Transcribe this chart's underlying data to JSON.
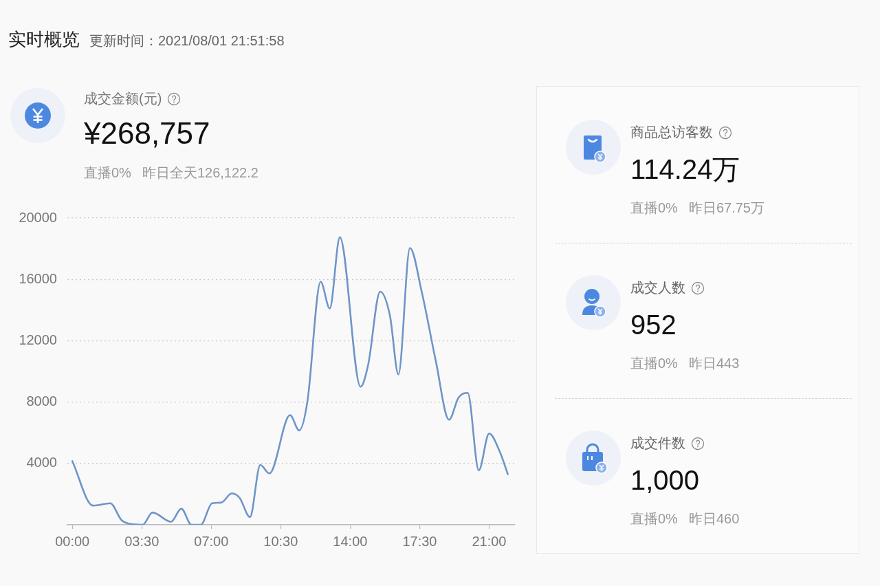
{
  "chart_data": [
    {
      "type": "line",
      "title": "实时概览",
      "subtitle": "更新时间：2021/08/01 21:51:58",
      "annotations": [
        "成交金额(元)",
        "¥268,757",
        "直播0%",
        "昨日全天126,122.2"
      ],
      "x": [
        0,
        1.04,
        1.91,
        2.48,
        2.94,
        3.54,
        4.04,
        4.97,
        5.49,
        6.0,
        6.47,
        7.04,
        7.51,
        8.03,
        8.43,
        8.95,
        9.47,
        9.93,
        10.97,
        11.43,
        11.84,
        12.51,
        12.97,
        13.48,
        14.52,
        14.9,
        15.51,
        16.0,
        16.43,
        17.01,
        17.61,
        18.31,
        18.98,
        19.46,
        19.92,
        20.48,
        21.0,
        21.54,
        21.94
      ],
      "series": [
        {
          "color": "#6f95c8",
          "values": [
            4150,
            1250,
            1400,
            300,
            50,
            0,
            800,
            200,
            1050,
            0,
            0,
            1400,
            1450,
            2050,
            1750,
            500,
            3900,
            3350,
            7150,
            6150,
            8000,
            15850,
            14100,
            18750,
            9000,
            10400,
            15200,
            13650,
            9800,
            18050,
            15150,
            10700,
            6850,
            8300,
            8600,
            3550,
            5950,
            4750,
            3300
          ]
        }
      ],
      "xlim": [
        -0.25,
        22.3
      ],
      "xticks": [
        {
          "value": 0,
          "label": "00:00"
        },
        {
          "value": 3.5,
          "label": "03:30"
        },
        {
          "value": 7,
          "label": "07:00"
        },
        {
          "value": 10.5,
          "label": "10:30"
        },
        {
          "value": 14,
          "label": "14:00"
        },
        {
          "value": 17.5,
          "label": "17:30"
        },
        {
          "value": 21,
          "label": "21:00"
        }
      ],
      "ylim": [
        0,
        20000
      ],
      "yticks": [
        4000,
        8000,
        12000,
        16000,
        20000
      ],
      "grid": "y",
      "marker": "none",
      "line_style": "solid"
    },
    {
      "type": "other",
      "annotations": [
        "商品总访客数",
        "114.24万",
        "直播0%",
        "昨日67.75万",
        "成交人数",
        "952",
        "直播0%",
        "昨日443",
        "成交件数",
        "1,000",
        "直播0%",
        "昨日460"
      ]
    }
  ]
}
